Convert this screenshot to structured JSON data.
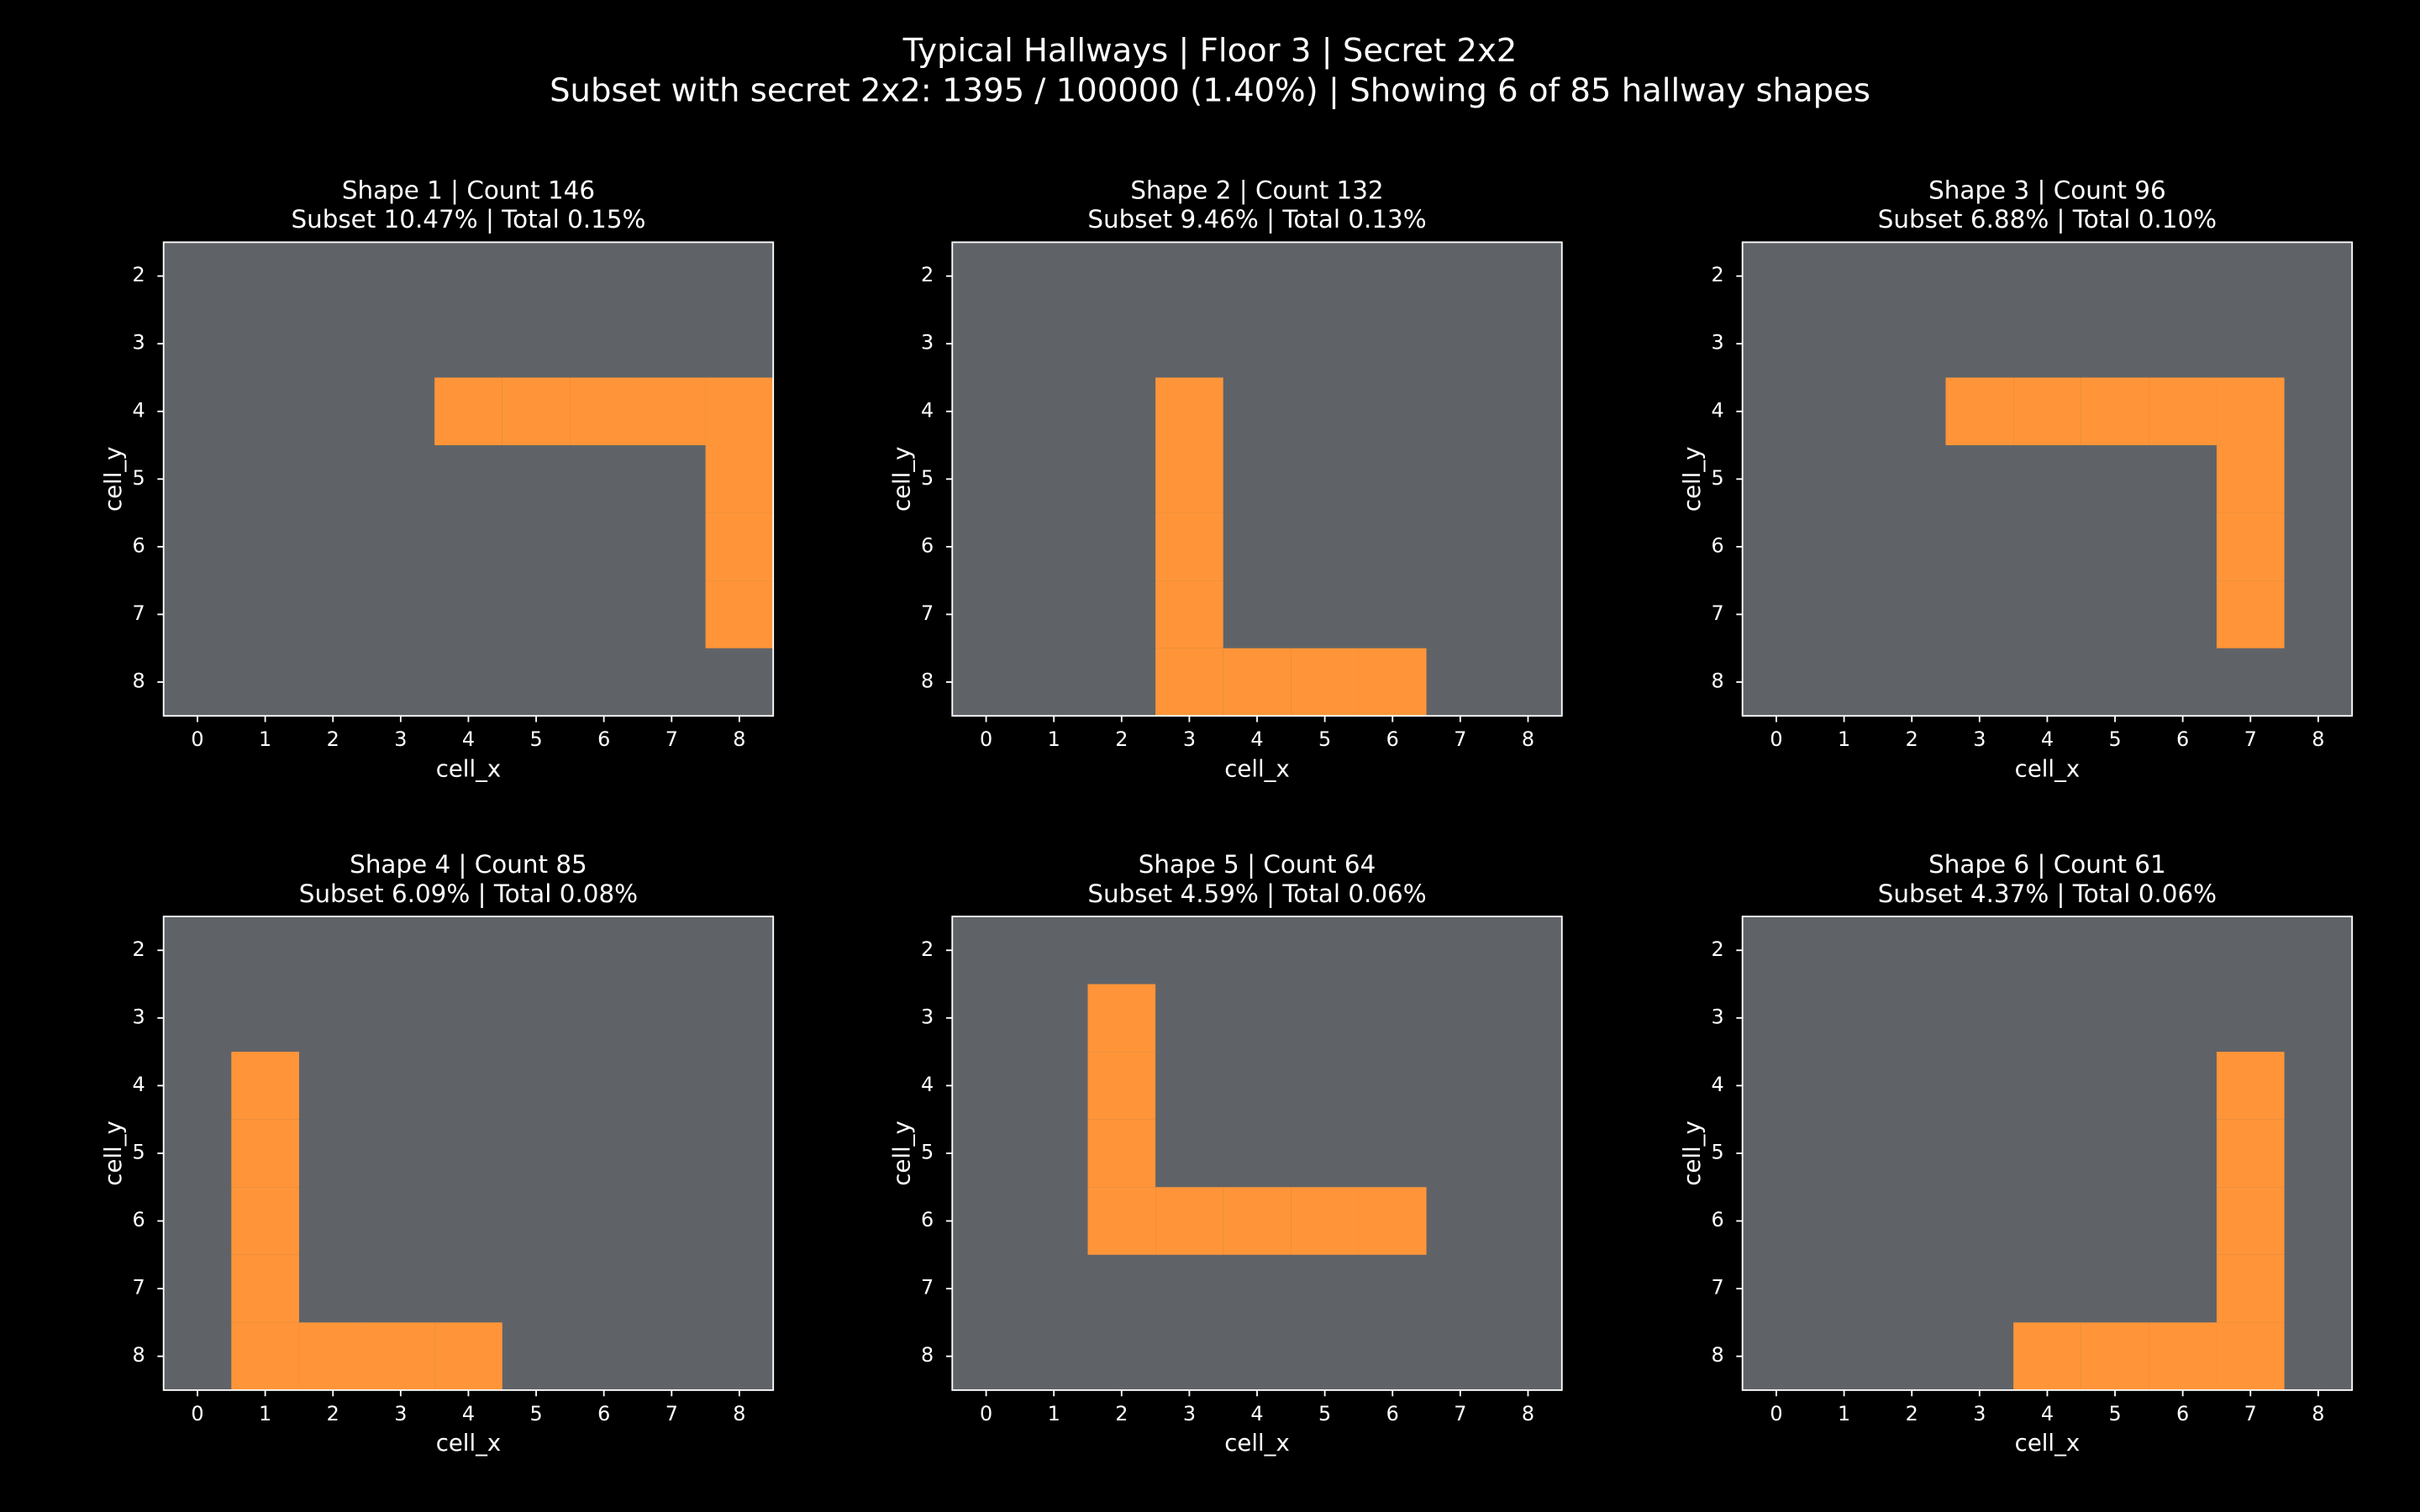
{
  "title": "Typical Hallways | Floor 3 | Secret 2x2",
  "subtitle": "Subset with secret 2x2: 1395 / 100000 (1.40%) | Showing 6 of 85 hallway shapes",
  "chart_data": [
    {
      "type": "heatmap",
      "title": "Shape 1 | Count 146",
      "subtitle": "Subset 10.47% | Total 0.15%",
      "xlabel": "cell_x",
      "ylabel": "cell_y",
      "background": "#5f6368",
      "color": "#ff9538",
      "x": [
        4,
        5,
        6,
        7,
        8,
        8,
        8,
        8
      ],
      "y": [
        4,
        4,
        4,
        4,
        4,
        5,
        6,
        7
      ],
      "xlim": [
        -0.5,
        8.5
      ],
      "ylim": [
        8.5,
        1.5
      ],
      "xticks": [
        0,
        1,
        2,
        3,
        4,
        5,
        6,
        7,
        8
      ],
      "yticks": [
        2,
        3,
        4,
        5,
        6,
        7,
        8
      ]
    },
    {
      "type": "heatmap",
      "title": "Shape 2 | Count 132",
      "subtitle": "Subset 9.46% | Total 0.13%",
      "xlabel": "cell_x",
      "ylabel": "cell_y",
      "background": "#5f6368",
      "color": "#ff9538",
      "x": [
        3,
        3,
        3,
        3,
        3,
        4,
        5,
        6
      ],
      "y": [
        4,
        5,
        6,
        7,
        8,
        8,
        8,
        8
      ],
      "xlim": [
        -0.5,
        8.5
      ],
      "ylim": [
        8.5,
        1.5
      ],
      "xticks": [
        0,
        1,
        2,
        3,
        4,
        5,
        6,
        7,
        8
      ],
      "yticks": [
        2,
        3,
        4,
        5,
        6,
        7,
        8
      ]
    },
    {
      "type": "heatmap",
      "title": "Shape 3 | Count 96",
      "subtitle": "Subset 6.88% | Total 0.10%",
      "xlabel": "cell_x",
      "ylabel": "cell_y",
      "background": "#5f6368",
      "color": "#ff9538",
      "x": [
        3,
        4,
        5,
        6,
        7,
        7,
        7,
        7
      ],
      "y": [
        4,
        4,
        4,
        4,
        4,
        5,
        6,
        7
      ],
      "xlim": [
        -0.5,
        8.5
      ],
      "ylim": [
        8.5,
        1.5
      ],
      "xticks": [
        0,
        1,
        2,
        3,
        4,
        5,
        6,
        7,
        8
      ],
      "yticks": [
        2,
        3,
        4,
        5,
        6,
        7,
        8
      ]
    },
    {
      "type": "heatmap",
      "title": "Shape 4 | Count 85",
      "subtitle": "Subset 6.09% | Total 0.08%",
      "xlabel": "cell_x",
      "ylabel": "cell_y",
      "background": "#5f6368",
      "color": "#ff9538",
      "x": [
        1,
        1,
        1,
        1,
        1,
        2,
        3,
        4
      ],
      "y": [
        4,
        5,
        6,
        7,
        8,
        8,
        8,
        8
      ],
      "xlim": [
        -0.5,
        8.5
      ],
      "ylim": [
        8.5,
        1.5
      ],
      "xticks": [
        0,
        1,
        2,
        3,
        4,
        5,
        6,
        7,
        8
      ],
      "yticks": [
        2,
        3,
        4,
        5,
        6,
        7,
        8
      ]
    },
    {
      "type": "heatmap",
      "title": "Shape 5 | Count 64",
      "subtitle": "Subset 4.59% | Total 0.06%",
      "xlabel": "cell_x",
      "ylabel": "cell_y",
      "background": "#5f6368",
      "color": "#ff9538",
      "x": [
        2,
        2,
        2,
        2,
        3,
        4,
        5,
        6
      ],
      "y": [
        3,
        4,
        5,
        6,
        6,
        6,
        6,
        6
      ],
      "xlim": [
        -0.5,
        8.5
      ],
      "ylim": [
        8.5,
        1.5
      ],
      "xticks": [
        0,
        1,
        2,
        3,
        4,
        5,
        6,
        7,
        8
      ],
      "yticks": [
        2,
        3,
        4,
        5,
        6,
        7,
        8
      ]
    },
    {
      "type": "heatmap",
      "title": "Shape 6 | Count 61",
      "subtitle": "Subset 4.37% | Total 0.06%",
      "xlabel": "cell_x",
      "ylabel": "cell_y",
      "background": "#5f6368",
      "color": "#ff9538",
      "x": [
        7,
        7,
        7,
        7,
        7,
        4,
        5,
        6
      ],
      "y": [
        4,
        5,
        6,
        7,
        8,
        8,
        8,
        8
      ],
      "xlim": [
        -0.5,
        8.5
      ],
      "ylim": [
        8.5,
        1.5
      ],
      "xticks": [
        0,
        1,
        2,
        3,
        4,
        5,
        6,
        7,
        8
      ],
      "yticks": [
        2,
        3,
        4,
        5,
        6,
        7,
        8
      ]
    }
  ]
}
